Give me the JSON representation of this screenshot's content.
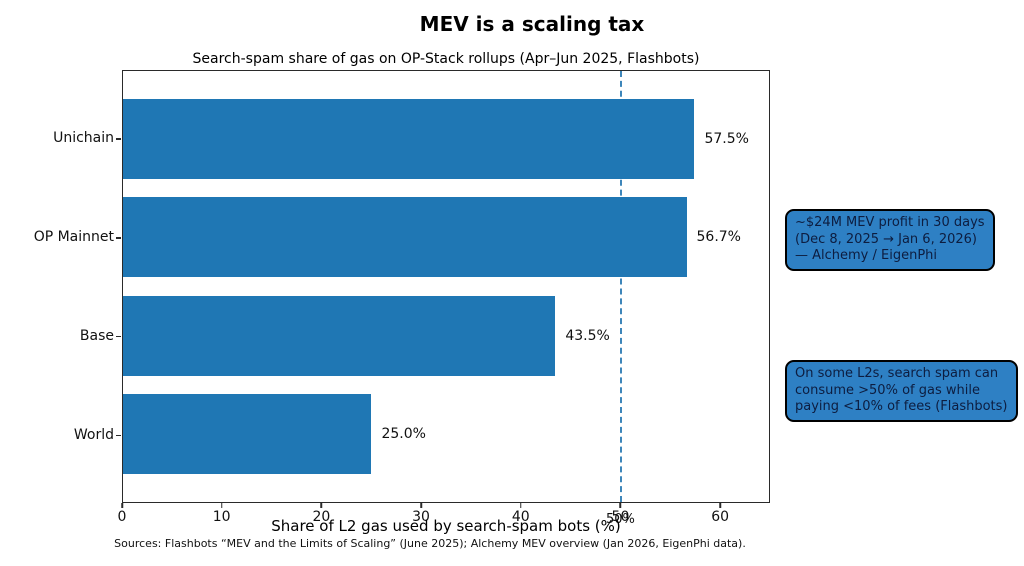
{
  "page": {
    "sources": "Sources: Flashbots “MEV and the Limits of Scaling” (June 2025); Alchemy MEV overview (Jan 2026, EigenPhi data)."
  },
  "chart_data": {
    "type": "bar",
    "orientation": "horizontal",
    "title": "MEV is a scaling tax",
    "subtitle": "Search-spam share of gas on OP-Stack rollups (Apr–Jun 2025, Flashbots)",
    "xlabel": "Share of L2 gas used by search-spam bots (%)",
    "categories": [
      "Unichain",
      "OP Mainnet",
      "Base",
      "World"
    ],
    "values": [
      57.5,
      56.7,
      43.5,
      25.0
    ],
    "value_labels": [
      "57.5%",
      "56.7%",
      "43.5%",
      "25.0%"
    ],
    "xlim": [
      0,
      65
    ],
    "xticks": [
      0,
      10,
      20,
      30,
      40,
      50,
      60
    ],
    "grid": false,
    "legend": null,
    "bar_color": "#1f77b4",
    "reference_line": {
      "x": 50,
      "label": "50%",
      "style": "dashed",
      "color": "#3d86ba"
    },
    "annotations": [
      {
        "text": "~$24M MEV profit in 30 days\n(Dec 8, 2025 → Jan 6, 2026)\n— Alchemy / EigenPhi"
      },
      {
        "text": "On some L2s, search spam can\nconsume >50% of gas while\npaying <10% of fees (Flashbots)"
      }
    ]
  },
  "colors": {
    "annotation_fill": "#2e80c4",
    "annotation_border": "#000000",
    "annotation_text": "#0d1d40",
    "bar": "#1f77b4",
    "refline": "#3d86ba"
  }
}
